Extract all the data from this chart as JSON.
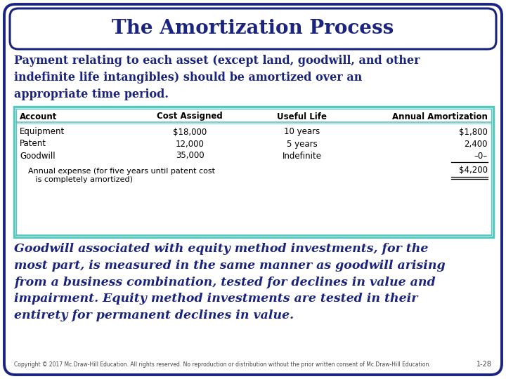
{
  "title": "The Amortization Process",
  "title_color": "#1a237e",
  "bg_color": "#ffffff",
  "border_color": "#1a237e",
  "body_text_color": "#1a237e",
  "table_border_color": "#5bc8c0",
  "paragraph1": "Payment relating to each asset (except land, goodwill, and other\nindefinite life intangibles) should be amortized over an\nappropriate time period.",
  "table_headers": [
    "Account",
    "Cost Assigned",
    "Useful Life",
    "Annual Amortization"
  ],
  "table_rows": [
    [
      "Equipment",
      "$18,000",
      "10 years",
      "$1,800"
    ],
    [
      "Patent",
      "12,000",
      "5 years",
      "2,400"
    ],
    [
      "Goodwill",
      "35,000",
      "Indefinite",
      "–0–"
    ]
  ],
  "table_footer_left1": "Annual expense (for five years until patent cost",
  "table_footer_left2": "   is completely amortized)",
  "table_footer_right": "$4,200",
  "paragraph2": "Goodwill associated with equity method investments, for the\nmost part, is measured in the same manner as goodwill arising\nfrom a business combination, tested for declines in value and\nimpairment. Equity method investments are tested in their\nentirety for permanent declines in value.",
  "copyright": "Copyright © 2017 Mc.Draw-Hill Education. All rights reserved. No reproduction or distribution without the prior written consent of Mc.Draw-Hill Education.",
  "slide_num": "1-28",
  "p1_fontsize": 11.5,
  "p2_fontsize": 12.5,
  "title_fontsize": 20,
  "table_header_fontsize": 8.5,
  "table_body_fontsize": 8.5,
  "copyright_fontsize": 5.5
}
